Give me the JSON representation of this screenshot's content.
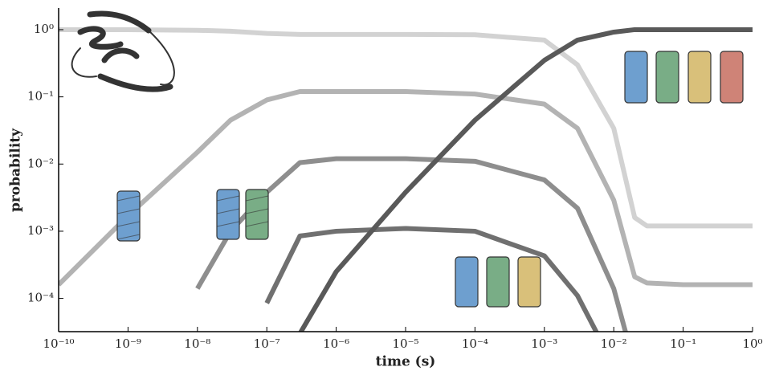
{
  "chart_data": {
    "type": "line",
    "x": [
      1e-10,
      1e-09,
      1e-08,
      3e-08,
      1e-07,
      3e-07,
      1e-06,
      1e-05,
      0.0001,
      0.001,
      0.003,
      0.01,
      0.02,
      0.03,
      0.1,
      1
    ],
    "series": [
      {
        "color": "#d2d2d2",
        "values": [
          1,
          1,
          0.98,
          0.95,
          0.88,
          0.85,
          0.85,
          0.85,
          0.84,
          0.7,
          0.3,
          0.034,
          0.0016,
          0.0012,
          0.0012,
          0.0012
        ]
      },
      {
        "color": "#b3b3b3",
        "values": [
          0.00016,
          0.0017,
          0.015,
          0.045,
          0.09,
          0.12,
          0.12,
          0.12,
          0.11,
          0.078,
          0.034,
          0.0029,
          0.00021,
          0.00017,
          0.00016,
          0.00016
        ]
      },
      {
        "color": "#8e8e8e",
        "values": [
          null,
          null,
          0.00014,
          0.001,
          0.0038,
          0.0105,
          0.012,
          0.012,
          0.011,
          0.0058,
          0.0022,
          0.00014,
          1e-05,
          null,
          null,
          null
        ]
      },
      {
        "color": "#707070",
        "values": [
          null,
          null,
          null,
          null,
          8.5e-05,
          0.00085,
          0.001,
          0.0011,
          0.001,
          0.00043,
          0.00011,
          1e-05,
          null,
          null,
          null,
          null
        ]
      },
      {
        "color": "#595959",
        "values": [
          null,
          null,
          null,
          null,
          null,
          3e-05,
          0.00025,
          0.0038,
          0.045,
          0.35,
          0.7,
          0.92,
          1,
          1,
          1,
          1
        ]
      }
    ],
    "xlabel": "time (s)",
    "ylabel": "probability",
    "xscale": "log",
    "yscale": "log",
    "xlim": [
      1e-10,
      1
    ],
    "ylim": [
      3.2e-05,
      2.1
    ],
    "xticks": [
      {
        "value": 1e-10,
        "label": "10⁻¹⁰"
      },
      {
        "value": 1e-09,
        "label": "10⁻⁹"
      },
      {
        "value": 1e-08,
        "label": "10⁻⁸"
      },
      {
        "value": 1e-07,
        "label": "10⁻⁷"
      },
      {
        "value": 1e-06,
        "label": "10⁻⁶"
      },
      {
        "value": 1e-05,
        "label": "10⁻⁵"
      },
      {
        "value": 0.0001,
        "label": "10⁻⁴"
      },
      {
        "value": 0.001,
        "label": "10⁻³"
      },
      {
        "value": 0.01,
        "label": "10⁻²"
      },
      {
        "value": 0.1,
        "label": "10⁻¹"
      },
      {
        "value": 1,
        "label": "10⁰"
      }
    ],
    "yticks": [
      {
        "value": 0.0001,
        "label": "10⁻⁴"
      },
      {
        "value": 0.001,
        "label": "10⁻³"
      },
      {
        "value": 0.01,
        "label": "10⁻²"
      },
      {
        "value": 0.1,
        "label": "10⁻¹"
      },
      {
        "value": 1,
        "label": "10⁰"
      }
    ]
  }
}
